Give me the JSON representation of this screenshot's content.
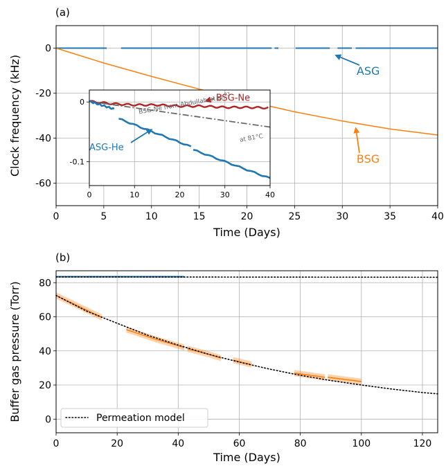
{
  "chart_data": [
    {
      "panel": "(a)",
      "type": "line",
      "xlabel": "Time (Days)",
      "ylabel": "Clock frequency (kHz)",
      "xlim": [
        0,
        40
      ],
      "ylim": [
        -70,
        10
      ],
      "xticks": [
        0,
        5,
        10,
        15,
        20,
        25,
        30,
        35,
        40
      ],
      "yticks": [
        0,
        -20,
        -40,
        -60
      ],
      "grid": true,
      "colors": {
        "ASG": "#1f77b4",
        "BSG": "#ff7f0e"
      },
      "series": [
        {
          "name": "ASG",
          "segments": [
            {
              "x": [
                0,
                5.3
              ],
              "y": [
                0,
                0
              ]
            },
            {
              "x": [
                6.8,
                22.6
              ],
              "y": [
                0,
                0
              ]
            },
            {
              "x": [
                22.9,
                23.3
              ],
              "y": [
                0,
                0
              ]
            },
            {
              "x": [
                25.1,
                28.7
              ],
              "y": [
                0,
                0
              ]
            },
            {
              "x": [
                29.5,
                31.0
              ],
              "y": [
                0,
                0
              ]
            },
            {
              "x": [
                31.4,
                40
              ],
              "y": [
                0,
                0
              ]
            }
          ]
        },
        {
          "name": "BSG",
          "x": [
            0,
            5,
            10,
            15,
            20,
            25,
            30,
            35,
            40
          ],
          "y": [
            0,
            -6.6,
            -12.6,
            -18.2,
            -23.5,
            -28.3,
            -32.4,
            -35.9,
            -38.6
          ]
        }
      ],
      "annotations": [
        {
          "text": "ASG",
          "color": "#1f77b4",
          "text_at": [
            31.5,
            -10
          ],
          "arrow_to": [
            29.2,
            -3
          ]
        },
        {
          "text": "BSG",
          "color": "#ff7f0e",
          "text_at": [
            31.5,
            -49
          ],
          "arrow_to": [
            31.4,
            -35
          ]
        }
      ]
    },
    {
      "panel": "(a) inset",
      "type": "line",
      "xlim": [
        0,
        40
      ],
      "ylim": [
        -0.14,
        0.02
      ],
      "xticks": [
        0,
        10,
        20,
        30,
        40
      ],
      "yticks": [
        0.0,
        -0.1
      ],
      "grid": true,
      "series": [
        {
          "name": "BSG-Ne",
          "color": "#b22222",
          "x": [
            0,
            5,
            10,
            15,
            20,
            25,
            30,
            35,
            40
          ],
          "y": [
            0.001,
            -0.003,
            -0.005,
            -0.005,
            -0.007,
            -0.007,
            -0.009,
            -0.009,
            -0.01
          ]
        },
        {
          "name": "ASG-He",
          "color": "#1f77b4",
          "segments": [
            {
              "x": [
                0,
                5.5
              ],
              "y": [
                0.001,
                -0.012
              ]
            },
            {
              "x": [
                6.5,
                22.5
              ],
              "y": [
                -0.028,
                -0.075
              ]
            },
            {
              "x": [
                23,
                40
              ],
              "y": [
                -0.08,
                -0.128
              ]
            }
          ]
        },
        {
          "name": "BSG-Ne from Abdullah et al.",
          "color": "#696969",
          "style": "dashdot",
          "x": [
            0,
            40
          ],
          "y": [
            0.001,
            -0.042
          ]
        }
      ],
      "annotations": [
        {
          "text": "BSG-Ne",
          "color": "#b22222",
          "text_at": [
            28,
            0.008
          ],
          "arrow_to": [
            25.5,
            0.001
          ]
        },
        {
          "text": "ASG-He",
          "color": "#1f77b4",
          "text_at": [
            0,
            -0.075
          ],
          "arrow_to": [
            14,
            -0.045
          ]
        },
        {
          "text": "BSG-Ne from Abdullah et al.",
          "sup": "23",
          "color": "#696969",
          "text_at": [
            11,
            -0.02
          ],
          "rotation": -10
        },
        {
          "text": "at 81°C",
          "color": "#696969",
          "text_at": [
            38.5,
            -0.06
          ],
          "rotation": -10
        }
      ]
    },
    {
      "panel": "(b)",
      "type": "line",
      "xlabel": "Time (Days)",
      "ylabel": "Buffer gas pressure (Torr)",
      "xlim": [
        0,
        125
      ],
      "ylim": [
        -8,
        87
      ],
      "xticks": [
        0,
        20,
        40,
        60,
        80,
        100,
        120
      ],
      "yticks": [
        0,
        20,
        40,
        60,
        80
      ],
      "grid": true,
      "legend": {
        "position": "lower-left",
        "entries": [
          "Permeation model"
        ]
      },
      "series": [
        {
          "name": "Permeation model",
          "style": "dotted",
          "color": "#000000",
          "segments": [
            {
              "x": [
                0,
                125
              ],
              "y": [
                83.4,
                83.2
              ]
            },
            {
              "x": [
                0,
                10,
                20,
                30,
                40,
                50,
                60,
                70,
                80,
                90,
                100,
                110,
                120,
                125
              ],
              "y": [
                72.5,
                63.3,
                56.2,
                49.2,
                43.4,
                38.0,
                33.4,
                29.3,
                25.7,
                22.6,
                20.0,
                17.6,
                15.6,
                14.8
              ]
            }
          ]
        },
        {
          "name": "ASG",
          "color": "#1f77b4",
          "segments": [
            {
              "x": [
                0,
                42
              ],
              "y": [
                83.5,
                83.5
              ]
            }
          ]
        },
        {
          "name": "BSG",
          "color": "#ff7f0e",
          "band_halfwidth": 1.8,
          "segments": [
            {
              "x": [
                0,
                15
              ],
              "y": [
                72.5,
                59.6
              ]
            },
            {
              "x": [
                23,
                33,
                42
              ],
              "y": [
                52.5,
                46.6,
                42.0
              ]
            },
            {
              "x": [
                43,
                50,
                54
              ],
              "y": [
                41.3,
                38.0,
                35.8
              ]
            },
            {
              "x": [
                58,
                64
              ],
              "y": [
                34.6,
                32.0
              ]
            },
            {
              "x": [
                78,
                88
              ],
              "y": [
                27.0,
                24.5
              ]
            },
            {
              "x": [
                89,
                100
              ],
              "y": [
                24.5,
                22.0
              ]
            }
          ]
        }
      ]
    }
  ]
}
